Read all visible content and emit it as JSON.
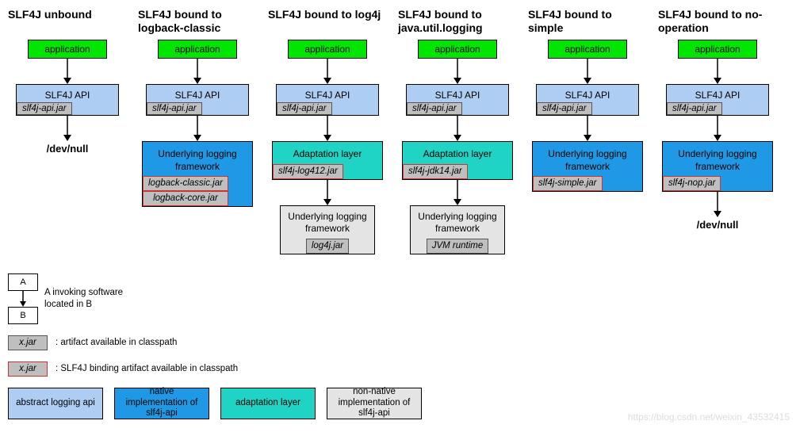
{
  "colors": {
    "green": "#00e600",
    "lightblue": "#aecdf2",
    "blue": "#1f99e5",
    "teal": "#1fd4c4",
    "gray": "#e4e4e4",
    "jar_gray": "#bfbfbf",
    "white": "#ffffff",
    "black": "#000000",
    "red_border": "#cc3333"
  },
  "columns": [
    {
      "title": "SLF4J unbound",
      "app": "application",
      "api": {
        "label": "SLF4J API",
        "jar": "slf4j-api.jar"
      },
      "terminal": "/dev/null"
    },
    {
      "title": "SLF4J bound to logback-classic",
      "app": "application",
      "api": {
        "label": "SLF4J API",
        "jar": "slf4j-api.jar"
      },
      "mid": {
        "type": "native",
        "label": "Underlying logging framework",
        "jars": [
          "logback-classic.jar",
          "logback-core.jar"
        ],
        "red": true
      }
    },
    {
      "title": "SLF4J bound to log4j",
      "app": "application",
      "api": {
        "label": "SLF4J API",
        "jar": "slf4j-api.jar"
      },
      "mid": {
        "type": "adaptation",
        "label": "Adaptation layer",
        "jars": [
          "slf4j-log412.jar"
        ],
        "red": true
      },
      "under": {
        "label": "Underlying logging framework",
        "jar": "log4j.jar"
      }
    },
    {
      "title": "SLF4J bound to java.util.logging",
      "app": "application",
      "api": {
        "label": "SLF4J API",
        "jar": "slf4j-api.jar"
      },
      "mid": {
        "type": "adaptation",
        "label": "Adaptation layer",
        "jars": [
          "slf4j-jdk14.jar"
        ],
        "red": true
      },
      "under": {
        "label": "Underlying logging framework",
        "jar": "JVM runtime"
      }
    },
    {
      "title": "SLF4J bound to simple",
      "app": "application",
      "api": {
        "label": "SLF4J API",
        "jar": "slf4j-api.jar"
      },
      "mid": {
        "type": "native",
        "label": "Underlying logging framework",
        "jars": [
          "slf4j-simple.jar"
        ],
        "red": true
      }
    },
    {
      "title": "SLF4J bound to no-operation",
      "app": "application",
      "api": {
        "label": "SLF4J API",
        "jar": "slf4j-api.jar"
      },
      "mid": {
        "type": "native",
        "label": "Underlying logging framework",
        "jars": [
          "slf4j-nop.jar"
        ],
        "red": true
      },
      "terminal": "/dev/null"
    }
  ],
  "legend": {
    "invoke": {
      "a": "A",
      "b": "B",
      "text": "A invoking software located in B"
    },
    "jar_plain": {
      "label": "x.jar",
      "text": ": artifact available in classpath"
    },
    "jar_red": {
      "label": "x.jar",
      "text": ": SLF4J binding artifact available in classpath"
    },
    "colors": [
      {
        "label": "abstract logging api",
        "bg_key": "lightblue"
      },
      {
        "label": "native implementation of slf4j-api",
        "bg_key": "blue"
      },
      {
        "label": "adaptation layer",
        "bg_key": "teal"
      },
      {
        "label": "non-native implementation of slf4j-api",
        "bg_key": "gray"
      }
    ]
  },
  "watermark": "https://blog.csdn.net/weixin_43532415"
}
